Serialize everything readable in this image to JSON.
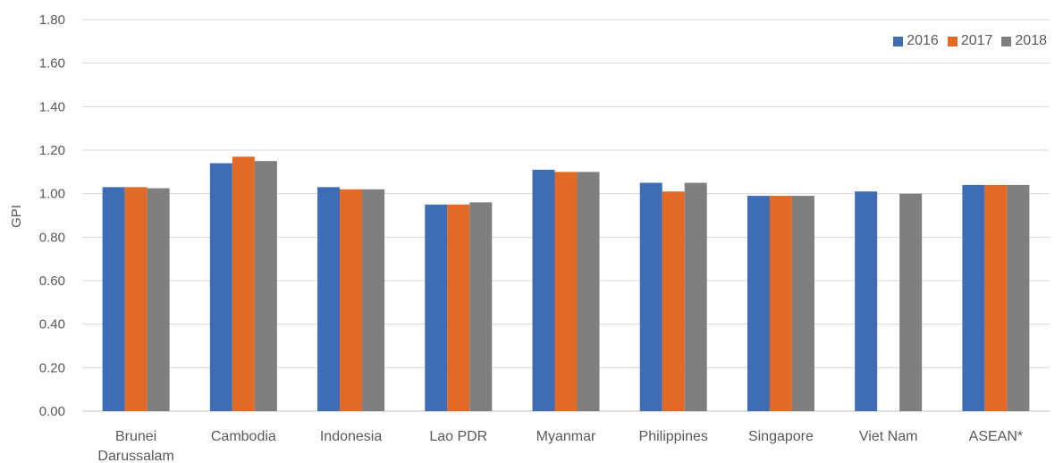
{
  "chart_data": {
    "type": "bar",
    "title": "",
    "xlabel": "",
    "ylabel": "GPI",
    "ylim": [
      0,
      1.8
    ],
    "yticks": [
      "0.00",
      "0.20",
      "0.40",
      "0.60",
      "0.80",
      "1.00",
      "1.20",
      "1.40",
      "1.60",
      "1.80"
    ],
    "grid": true,
    "legend_position": "top-right",
    "categories": [
      [
        "Brunei",
        "Darussalam"
      ],
      [
        "Cambodia"
      ],
      [
        "Indonesia"
      ],
      [
        "Lao PDR"
      ],
      [
        "Myanmar"
      ],
      [
        "Philippines"
      ],
      [
        "Singapore"
      ],
      [
        "Viet Nam"
      ],
      [
        "ASEAN*"
      ]
    ],
    "series": [
      {
        "name": "2016",
        "color": "#3E6DB5",
        "values": [
          1.03,
          1.14,
          1.03,
          0.95,
          1.11,
          1.05,
          0.99,
          1.01,
          1.04
        ]
      },
      {
        "name": "2017",
        "color": "#E06A26",
        "values": [
          1.03,
          1.17,
          1.02,
          0.95,
          1.1,
          1.01,
          0.99,
          null,
          1.04
        ]
      },
      {
        "name": "2018",
        "color": "#7F7F7F",
        "values": [
          1.025,
          1.15,
          1.02,
          0.96,
          1.1,
          1.05,
          0.99,
          1.0,
          1.04
        ]
      }
    ]
  }
}
